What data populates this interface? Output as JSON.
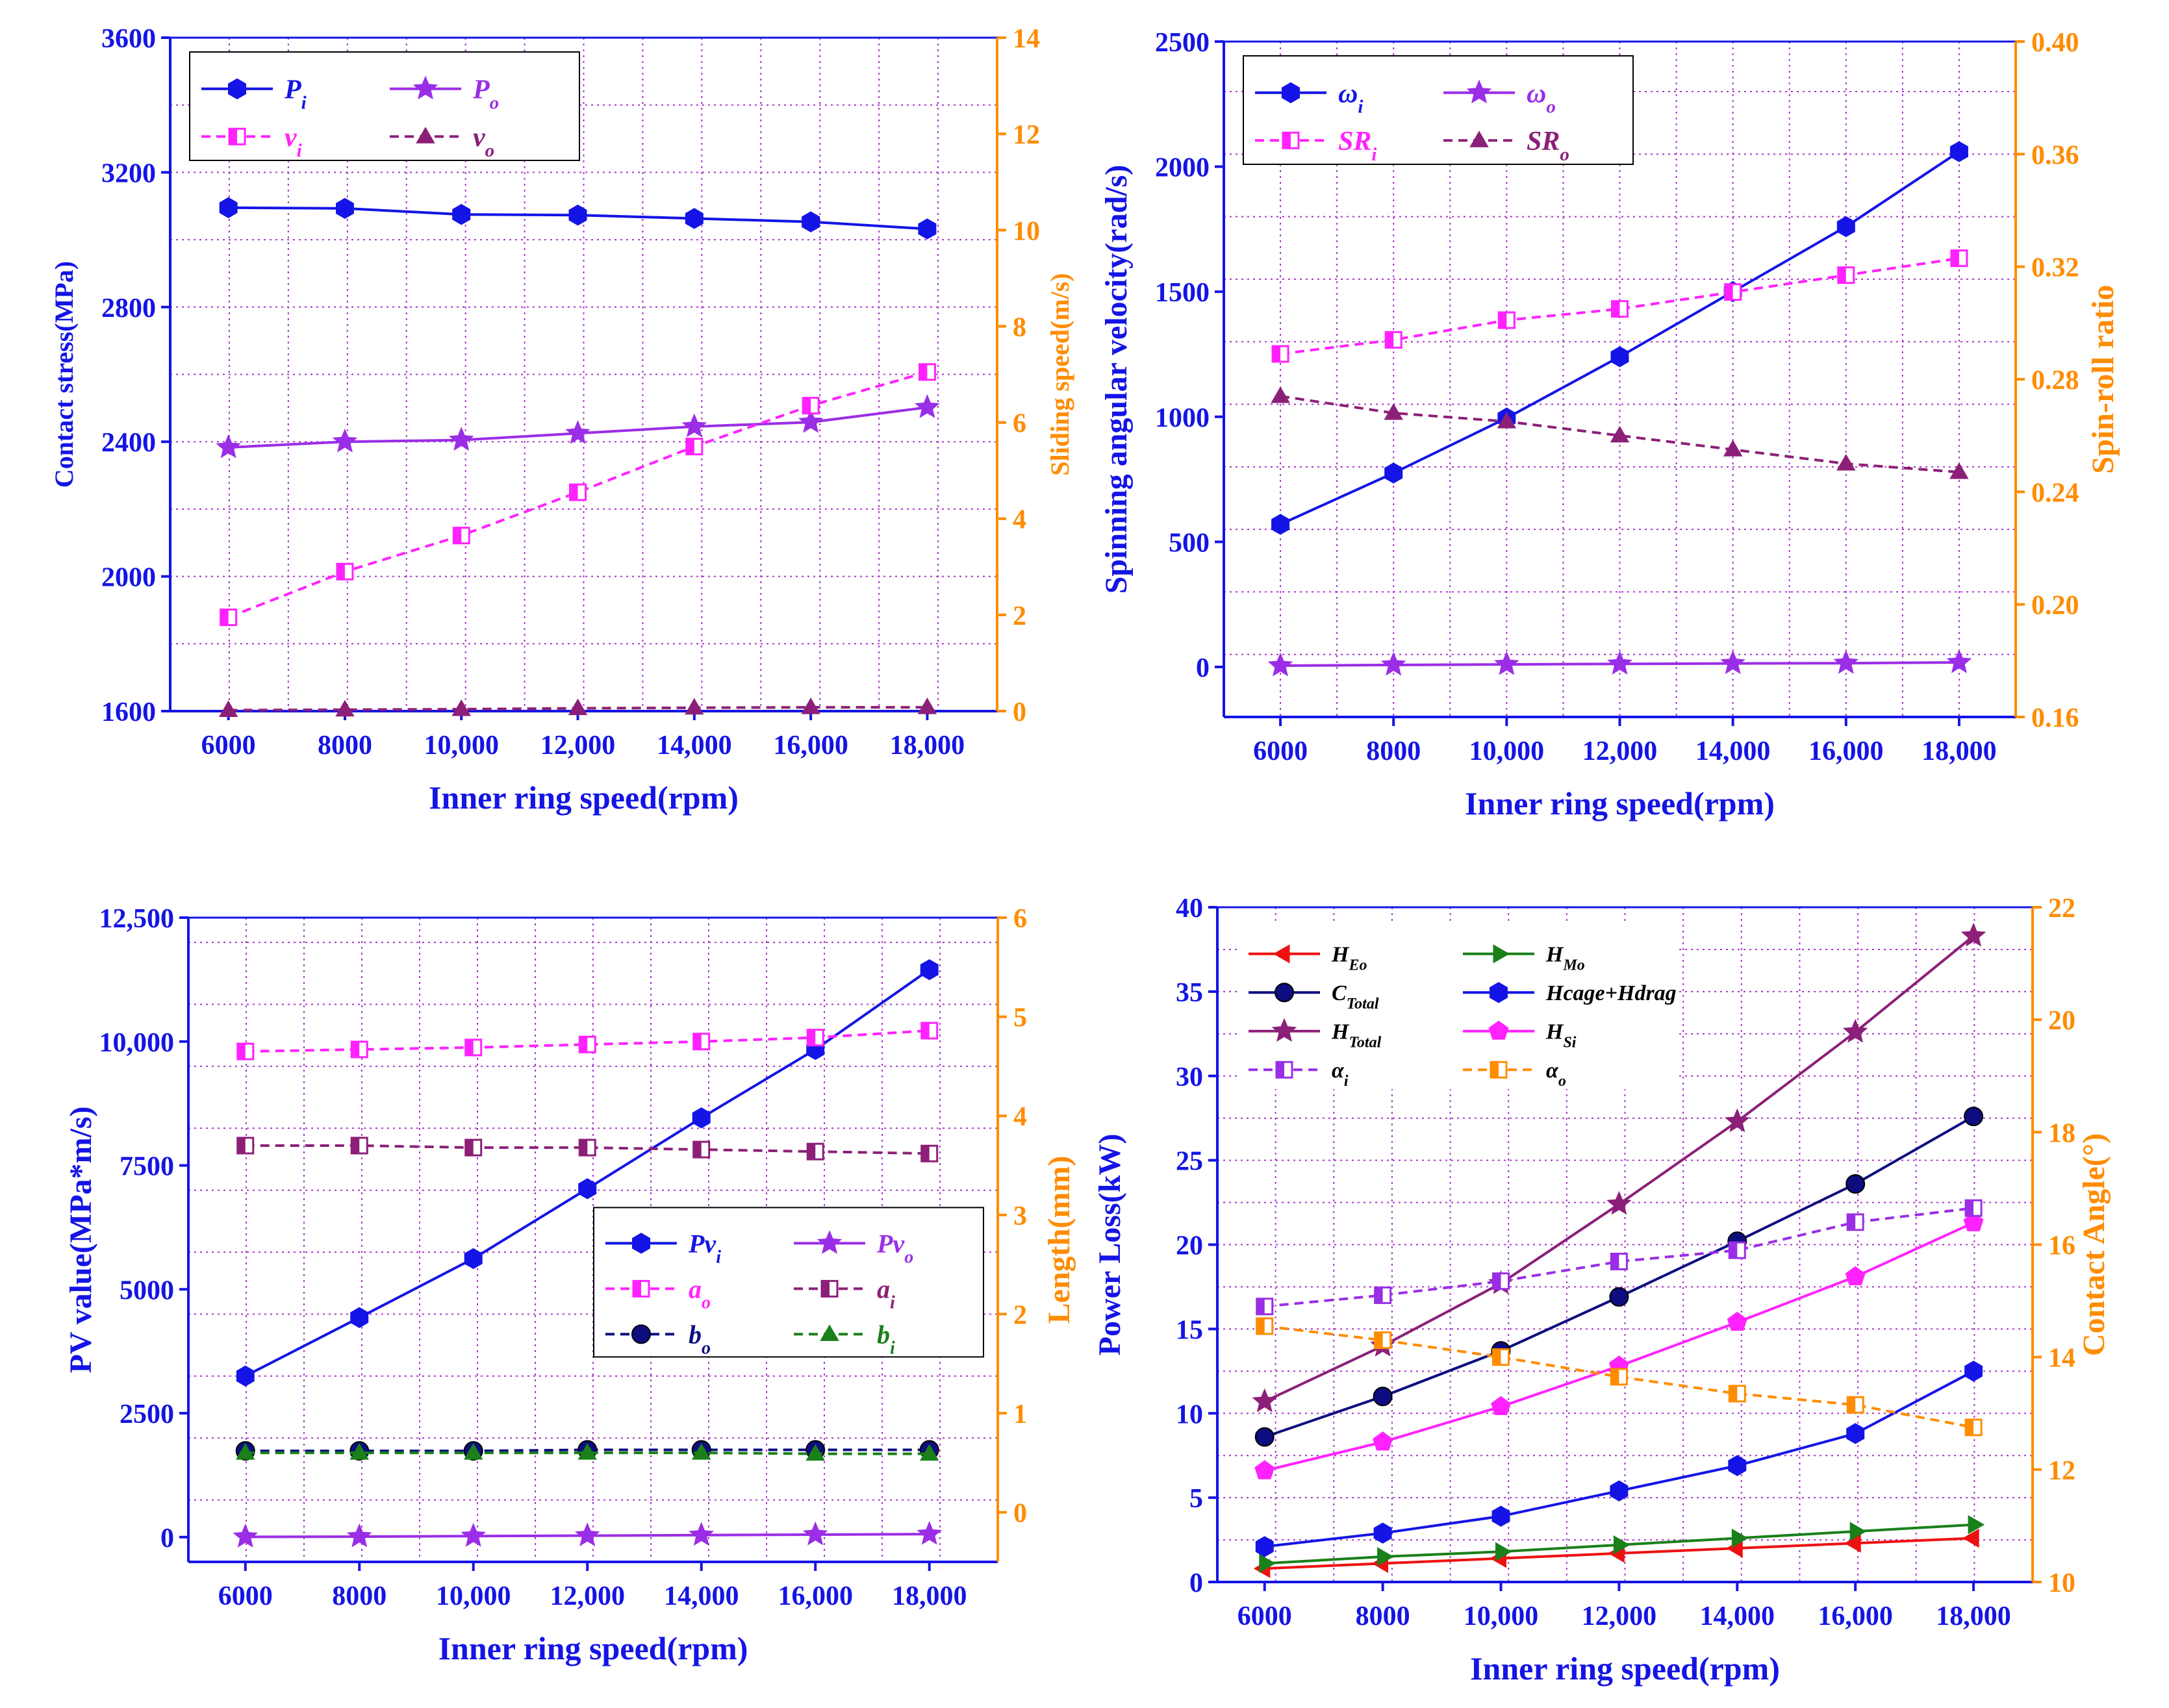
{
  "figure": {
    "panels": [
      {
        "id": "a",
        "legend_rows": [
          [
            "P_i",
            "P_o"
          ],
          [
            "v_i",
            "v_o"
          ]
        ],
        "legend_pos": "top-left",
        "legend_fs": 42
      },
      {
        "id": "b",
        "legend_rows": [
          [
            "omega_i",
            "omega_o"
          ],
          [
            "SR_i",
            "SR_o"
          ]
        ],
        "legend_pos": "top-left",
        "legend_fs": 42
      },
      {
        "id": "c",
        "legend_rows": [
          [
            "Pv_i",
            "Pv_o"
          ],
          [
            "a_o",
            "a_i"
          ],
          [
            "b_o",
            "b_i"
          ]
        ],
        "legend_pos": "center-right",
        "legend_fs": 40
      },
      {
        "id": "d",
        "legend_rows": [
          [
            "H_Eo",
            "H_Mo"
          ],
          [
            "C_Total",
            "Hcage_Hdrag"
          ],
          [
            "H_Total",
            "H_Si"
          ],
          [
            "alpha_i",
            "alpha_o"
          ]
        ],
        "legend_pos": "top-left",
        "legend_fs": 34
      }
    ]
  },
  "colors": {
    "left_axis": "#1414e6",
    "right_axis": "#ff8c00",
    "grid": "#aa33cc",
    "blue": "#1414e6",
    "violet": "#9a2ee6",
    "magenta": "#ff22ff",
    "plum": "#8c1f78",
    "navy": "#0d0d80",
    "green": "#1a801a",
    "red": "#ee1111",
    "pink": "#ff22ff",
    "purple_dash": "#9a2ee6",
    "orange": "#ff8c00"
  },
  "chart_data": [
    {
      "id": "a",
      "type": "line",
      "x": [
        6000,
        8000,
        10000,
        12000,
        14000,
        16000,
        18000
      ],
      "xlabel": "Inner ring speed(rpm)",
      "xticks": [
        "6000",
        "8000",
        "10,000",
        "12,000",
        "14,000",
        "16,000",
        "18,000"
      ],
      "ylabel_left": "Contact stress(MPa)",
      "ylim_left": [
        1600,
        3600
      ],
      "yticks_left": [
        1600,
        2000,
        2400,
        2800,
        3200,
        3600
      ],
      "ytick_labels_left": [
        "1600",
        "2000",
        "2400",
        "2800",
        "3200",
        "3600"
      ],
      "ylabel_right": "Sliding speed(m/s)",
      "ylim_right": [
        0,
        14
      ],
      "yticks_right": [
        0,
        2,
        4,
        6,
        8,
        10,
        12,
        14
      ],
      "ytick_labels_right": [
        "0",
        "2",
        "4",
        "6",
        "8",
        "10",
        "12",
        "14"
      ],
      "series": [
        {
          "key": "P_i",
          "name": "P",
          "sub": "i",
          "axis": "left",
          "color": "blue",
          "dash": false,
          "marker": "hexagon",
          "values": [
            3095,
            3093,
            3075,
            3073,
            3063,
            3053,
            3032
          ]
        },
        {
          "key": "P_o",
          "name": "P",
          "sub": "o",
          "axis": "left",
          "color": "violet",
          "dash": false,
          "marker": "star",
          "values": [
            2383,
            2400,
            2405,
            2425,
            2445,
            2458,
            2502
          ]
        },
        {
          "key": "v_i",
          "name": "v",
          "sub": "i",
          "axis": "right",
          "color": "magenta",
          "dash": true,
          "marker": "half-square",
          "values": [
            1.95,
            2.9,
            3.65,
            4.55,
            5.5,
            6.35,
            7.05
          ]
        },
        {
          "key": "v_o",
          "name": "v",
          "sub": "o",
          "axis": "right",
          "color": "plum",
          "dash": true,
          "marker": "triangle",
          "values": [
            0.02,
            0.03,
            0.04,
            0.06,
            0.07,
            0.08,
            0.08
          ]
        }
      ]
    },
    {
      "id": "b",
      "type": "line",
      "x": [
        6000,
        8000,
        10000,
        12000,
        14000,
        16000,
        18000
      ],
      "xlabel": "Inner ring speed(rpm)",
      "xticks": [
        "6000",
        "8000",
        "10,000",
        "12,000",
        "14,000",
        "16,000",
        "18,000"
      ],
      "ylabel_left": "Spinning angular velocity(rad/s)",
      "ylim_left": [
        -200,
        2500
      ],
      "yticks_left": [
        0,
        500,
        1000,
        1500,
        2000,
        2500
      ],
      "ytick_labels_left": [
        "0",
        "500",
        "1000",
        "1500",
        "2000",
        "2500"
      ],
      "ylabel_right": "Spin-roll ratio",
      "ylim_right": [
        0.16,
        0.4
      ],
      "yticks_right": [
        0.16,
        0.2,
        0.24,
        0.28,
        0.32,
        0.36,
        0.4
      ],
      "ytick_labels_right": [
        "0.16",
        "0.20",
        "0.24",
        "0.28",
        "0.32",
        "0.36",
        "0.40"
      ],
      "series": [
        {
          "key": "omega_i",
          "name": "ω",
          "sub": "i",
          "axis": "left",
          "color": "blue",
          "dash": false,
          "marker": "hexagon",
          "values": [
            570,
            775,
            995,
            1240,
            1500,
            1760,
            2060
          ]
        },
        {
          "key": "omega_o",
          "name": "ω",
          "sub": "o",
          "axis": "left",
          "color": "violet",
          "dash": false,
          "marker": "star",
          "values": [
            5,
            8,
            10,
            12,
            14,
            15,
            18
          ]
        },
        {
          "key": "SR_i",
          "name": "SR",
          "sub": "i",
          "axis": "right",
          "color": "magenta",
          "dash": true,
          "marker": "half-square",
          "values": [
            0.289,
            0.294,
            0.301,
            0.305,
            0.311,
            0.317,
            0.323
          ]
        },
        {
          "key": "SR_o",
          "name": "SR",
          "sub": "o",
          "axis": "right",
          "color": "plum",
          "dash": true,
          "marker": "triangle",
          "values": [
            0.274,
            0.268,
            0.265,
            0.26,
            0.255,
            0.25,
            0.247
          ]
        }
      ]
    },
    {
      "id": "c",
      "type": "line",
      "x": [
        6000,
        8000,
        10000,
        12000,
        14000,
        16000,
        18000
      ],
      "xlabel": "Inner ring speed(rpm)",
      "xticks": [
        "6000",
        "8000",
        "10,000",
        "12,000",
        "14,000",
        "16,000",
        "18,000"
      ],
      "ylabel_left": "PV value(MPa*m/s)",
      "ylim_left": [
        -500,
        12500
      ],
      "yticks_left": [
        0,
        2500,
        5000,
        7500,
        10000,
        12500
      ],
      "ytick_labels_left": [
        "0",
        "2500",
        "5000",
        "7500",
        "10,000",
        "12,500"
      ],
      "ylabel_right": "Length(mm)",
      "ylim_right": [
        -0.5,
        6
      ],
      "yticks_right": [
        0,
        1,
        2,
        3,
        4,
        5,
        6
      ],
      "ytick_labels_right": [
        "0",
        "1",
        "2",
        "3",
        "4",
        "5",
        "6"
      ],
      "series": [
        {
          "key": "Pv_i",
          "name": "Pv",
          "sub": "i",
          "axis": "left",
          "color": "blue",
          "dash": false,
          "marker": "hexagon",
          "values": [
            3250,
            4430,
            5620,
            7030,
            8460,
            9840,
            11450
          ]
        },
        {
          "key": "Pv_o",
          "name": "Pv",
          "sub": "o",
          "axis": "left",
          "color": "violet",
          "dash": false,
          "marker": "star",
          "values": [
            5,
            10,
            20,
            30,
            40,
            50,
            60
          ]
        },
        {
          "key": "a_o",
          "name": "a",
          "sub": "o",
          "axis": "right",
          "color": "magenta",
          "dash": true,
          "marker": "half-square",
          "values": [
            4.65,
            4.67,
            4.69,
            4.72,
            4.75,
            4.79,
            4.86
          ]
        },
        {
          "key": "a_i",
          "name": "a",
          "sub": "i",
          "axis": "right",
          "color": "plum",
          "dash": true,
          "marker": "half-square",
          "values": [
            3.7,
            3.7,
            3.68,
            3.68,
            3.66,
            3.64,
            3.62
          ]
        },
        {
          "key": "b_o",
          "name": "b",
          "sub": "o",
          "axis": "right",
          "color": "navy",
          "dash": true,
          "marker": "circle",
          "values": [
            0.62,
            0.62,
            0.62,
            0.63,
            0.63,
            0.63,
            0.63
          ]
        },
        {
          "key": "b_i",
          "name": "b",
          "sub": "i",
          "axis": "right",
          "color": "green",
          "dash": true,
          "marker": "triangle",
          "values": [
            0.6,
            0.6,
            0.6,
            0.6,
            0.6,
            0.59,
            0.59
          ]
        }
      ]
    },
    {
      "id": "d",
      "type": "line",
      "x": [
        6000,
        8000,
        10000,
        12000,
        14000,
        16000,
        18000
      ],
      "xlabel": "Inner ring speed(rpm)",
      "xticks": [
        "6000",
        "8000",
        "10,000",
        "12,000",
        "14,000",
        "16,000",
        "18,000"
      ],
      "ylabel_left": "Power Loss(kW)",
      "ylim_left": [
        0,
        40
      ],
      "yticks_left": [
        0,
        5,
        10,
        15,
        20,
        25,
        30,
        35,
        40
      ],
      "ytick_labels_left": [
        "0",
        "5",
        "10",
        "15",
        "20",
        "25",
        "30",
        "35",
        "40"
      ],
      "ylabel_right": "Contact Angle(°)",
      "ylim_right": [
        10,
        22
      ],
      "yticks_right": [
        10,
        12,
        14,
        16,
        18,
        20,
        22
      ],
      "ytick_labels_right": [
        "10",
        "12",
        "14",
        "16",
        "18",
        "20",
        "22"
      ],
      "series": [
        {
          "key": "H_Eo",
          "name": "H",
          "sub": "Eo",
          "axis": "left",
          "color": "red",
          "dash": false,
          "marker": "tri-left",
          "values": [
            0.8,
            1.1,
            1.4,
            1.7,
            2.0,
            2.3,
            2.6
          ]
        },
        {
          "key": "H_Mo",
          "name": "H",
          "sub": "Mo",
          "axis": "left",
          "color": "green",
          "dash": false,
          "marker": "tri-right",
          "values": [
            1.1,
            1.5,
            1.8,
            2.2,
            2.6,
            3.0,
            3.4
          ]
        },
        {
          "key": "C_Total",
          "name": "C",
          "sub": "Total",
          "axis": "left",
          "color": "navy",
          "dash": false,
          "marker": "circle",
          "values": [
            8.6,
            11.0,
            13.7,
            16.9,
            20.2,
            23.6,
            27.6
          ]
        },
        {
          "key": "Hcage_Hdrag",
          "name": "Hcage+Hdrag",
          "sub": "",
          "axis": "left",
          "color": "blue",
          "dash": false,
          "marker": "hexagon",
          "values": [
            2.1,
            2.9,
            3.9,
            5.4,
            6.9,
            8.8,
            12.5
          ]
        },
        {
          "key": "H_Total",
          "name": "H",
          "sub": "Total",
          "axis": "left",
          "color": "plum",
          "dash": false,
          "marker": "star",
          "values": [
            10.7,
            14.0,
            17.7,
            22.4,
            27.3,
            32.6,
            38.3
          ]
        },
        {
          "key": "H_Si",
          "name": "H",
          "sub": "Si",
          "axis": "left",
          "color": "pink",
          "dash": false,
          "marker": "pentagon",
          "values": [
            6.6,
            8.3,
            10.4,
            12.8,
            15.4,
            18.1,
            21.3
          ]
        },
        {
          "key": "alpha_i",
          "name": "α",
          "sub": "i",
          "axis": "right",
          "color": "purple_dash",
          "dash": true,
          "marker": "half-square",
          "values": [
            14.9,
            15.1,
            15.35,
            15.7,
            15.9,
            16.4,
            16.65
          ]
        },
        {
          "key": "alpha_o",
          "name": "α",
          "sub": "o",
          "axis": "right",
          "color": "orange",
          "dash": true,
          "marker": "half-square",
          "values": [
            14.55,
            14.3,
            14.0,
            13.65,
            13.35,
            13.15,
            12.75
          ]
        }
      ]
    }
  ]
}
